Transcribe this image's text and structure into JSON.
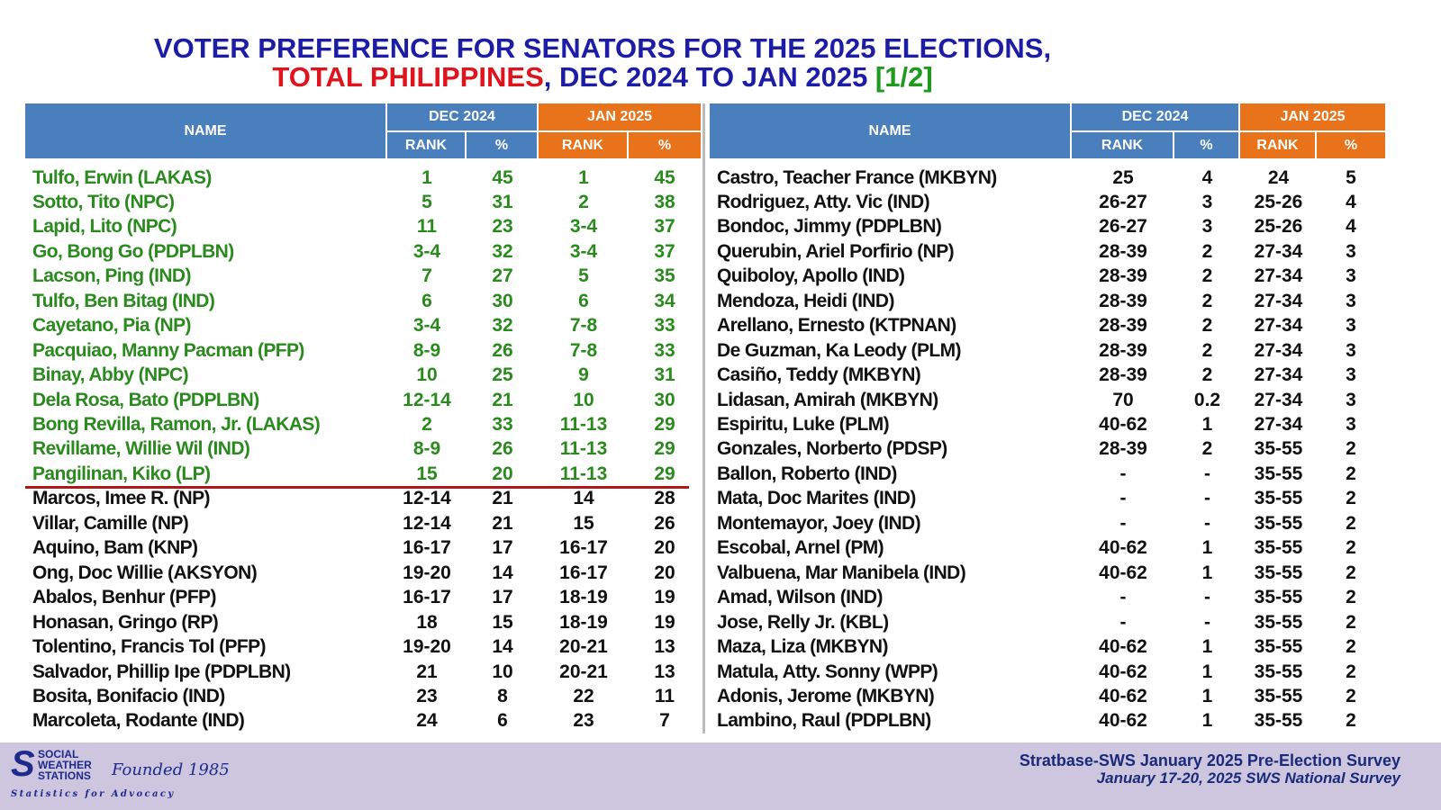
{
  "title": {
    "line1": "VOTER PREFERENCE FOR SENATORS FOR THE 2025 ELECTIONS,",
    "total": "TOTAL",
    "philippines": " PHILIPPINES",
    "rest": ", DEC 2024 TO JAN 2025 ",
    "part": "[1/2]"
  },
  "headers": {
    "name": "NAME",
    "dec": "DEC 2024",
    "jan": "JAN 2025",
    "rank": "RANK",
    "pct": "%"
  },
  "colors": {
    "header_blue": "#4a7fbd",
    "header_orange": "#e8731a",
    "winner_green": "#2a8a1e",
    "cutoff_line": "#b01818"
  },
  "left_rows": [
    [
      "Tulfo, Erwin (LAKAS)",
      "1",
      "45",
      "1",
      "45"
    ],
    [
      "Sotto, Tito (NPC)",
      "5",
      "31",
      "2",
      "38"
    ],
    [
      "Lapid, Lito (NPC)",
      "11",
      "23",
      "3-4",
      "37"
    ],
    [
      "Go, Bong Go (PDPLBN)",
      "3-4",
      "32",
      "3-4",
      "37"
    ],
    [
      "Lacson, Ping (IND)",
      "7",
      "27",
      "5",
      "35"
    ],
    [
      "Tulfo, Ben Bitag (IND)",
      "6",
      "30",
      "6",
      "34"
    ],
    [
      "Cayetano, Pia (NP)",
      "3-4",
      "32",
      "7-8",
      "33"
    ],
    [
      "Pacquiao, Manny Pacman (PFP)",
      "8-9",
      "26",
      "7-8",
      "33"
    ],
    [
      "Binay, Abby (NPC)",
      "10",
      "25",
      "9",
      "31"
    ],
    [
      "Dela Rosa, Bato (PDPLBN)",
      "12-14",
      "21",
      "10",
      "30"
    ],
    [
      "Bong Revilla, Ramon, Jr. (LAKAS)",
      "2",
      "33",
      "11-13",
      "29"
    ],
    [
      "Revillame, Willie Wil (IND)",
      "8-9",
      "26",
      "11-13",
      "29"
    ],
    [
      "Pangilinan, Kiko (LP)",
      "15",
      "20",
      "11-13",
      "29"
    ],
    [
      "Marcos, Imee R. (NP)",
      "12-14",
      "21",
      "14",
      "28"
    ],
    [
      "Villar, Camille (NP)",
      "12-14",
      "21",
      "15",
      "26"
    ],
    [
      "Aquino, Bam (KNP)",
      "16-17",
      "17",
      "16-17",
      "20"
    ],
    [
      "Ong, Doc Willie (AKSYON)",
      "19-20",
      "14",
      "16-17",
      "20"
    ],
    [
      "Abalos, Benhur (PFP)",
      "16-17",
      "17",
      "18-19",
      "19"
    ],
    [
      "Honasan, Gringo (RP)",
      "18",
      "15",
      "18-19",
      "19"
    ],
    [
      "Tolentino, Francis Tol (PFP)",
      "19-20",
      "14",
      "20-21",
      "13"
    ],
    [
      "Salvador, Phillip Ipe (PDPLBN)",
      "21",
      "10",
      "20-21",
      "13"
    ],
    [
      "Bosita, Bonifacio (IND)",
      "23",
      "8",
      "22",
      "11"
    ],
    [
      "Marcoleta, Rodante (IND)",
      "24",
      "6",
      "23",
      "7"
    ]
  ],
  "right_rows": [
    [
      "Castro, Teacher France (MKBYN)",
      "25",
      "4",
      "24",
      "5"
    ],
    [
      "Rodriguez, Atty. Vic (IND)",
      "26-27",
      "3",
      "25-26",
      "4"
    ],
    [
      "Bondoc, Jimmy (PDPLBN)",
      "26-27",
      "3",
      "25-26",
      "4"
    ],
    [
      "Querubin, Ariel Porfirio (NP)",
      "28-39",
      "2",
      "27-34",
      "3"
    ],
    [
      "Quiboloy, Apollo (IND)",
      "28-39",
      "2",
      "27-34",
      "3"
    ],
    [
      "Mendoza, Heidi (IND)",
      "28-39",
      "2",
      "27-34",
      "3"
    ],
    [
      "Arellano, Ernesto (KTPNAN)",
      "28-39",
      "2",
      "27-34",
      "3"
    ],
    [
      "De Guzman, Ka Leody (PLM)",
      "28-39",
      "2",
      "27-34",
      "3"
    ],
    [
      "Casiño, Teddy (MKBYN)",
      "28-39",
      "2",
      "27-34",
      "3"
    ],
    [
      "Lidasan, Amirah (MKBYN)",
      "70",
      "0.2",
      "27-34",
      "3"
    ],
    [
      "Espiritu, Luke (PLM)",
      "40-62",
      "1",
      "27-34",
      "3"
    ],
    [
      "Gonzales, Norberto (PDSP)",
      "28-39",
      "2",
      "35-55",
      "2"
    ],
    [
      "Ballon, Roberto (IND)",
      "-",
      "-",
      "35-55",
      "2"
    ],
    [
      "Mata, Doc Marites (IND)",
      "-",
      "-",
      "35-55",
      "2"
    ],
    [
      "Montemayor, Joey (IND)",
      "-",
      "-",
      "35-55",
      "2"
    ],
    [
      "Escobal, Arnel (PM)",
      "40-62",
      "1",
      "35-55",
      "2"
    ],
    [
      "Valbuena, Mar Manibela (IND)",
      "40-62",
      "1",
      "35-55",
      "2"
    ],
    [
      "Amad, Wilson (IND)",
      "-",
      "-",
      "35-55",
      "2"
    ],
    [
      "Jose, Relly Jr. (KBL)",
      "-",
      "-",
      "35-55",
      "2"
    ],
    [
      "Maza, Liza (MKBYN)",
      "40-62",
      "1",
      "35-55",
      "2"
    ],
    [
      "Matula, Atty. Sonny (WPP)",
      "40-62",
      "1",
      "35-55",
      "2"
    ],
    [
      "Adonis, Jerome (MKBYN)",
      "40-62",
      "1",
      "35-55",
      "2"
    ],
    [
      "Lambino, Raul (PDPLBN)",
      "40-62",
      "1",
      "35-55",
      "2"
    ]
  ],
  "winners_count": 13,
  "footer": {
    "logo_line1": "SOCIAL",
    "logo_line2": "WEATHER",
    "logo_line3": "STATIONS",
    "logo_founded": "Founded 1985",
    "logo_tagline": "Statistics for Advocacy",
    "source1": "Stratbase-SWS January 2025 Pre-Election Survey",
    "source2": "January 17-20, 2025 SWS National Survey"
  }
}
